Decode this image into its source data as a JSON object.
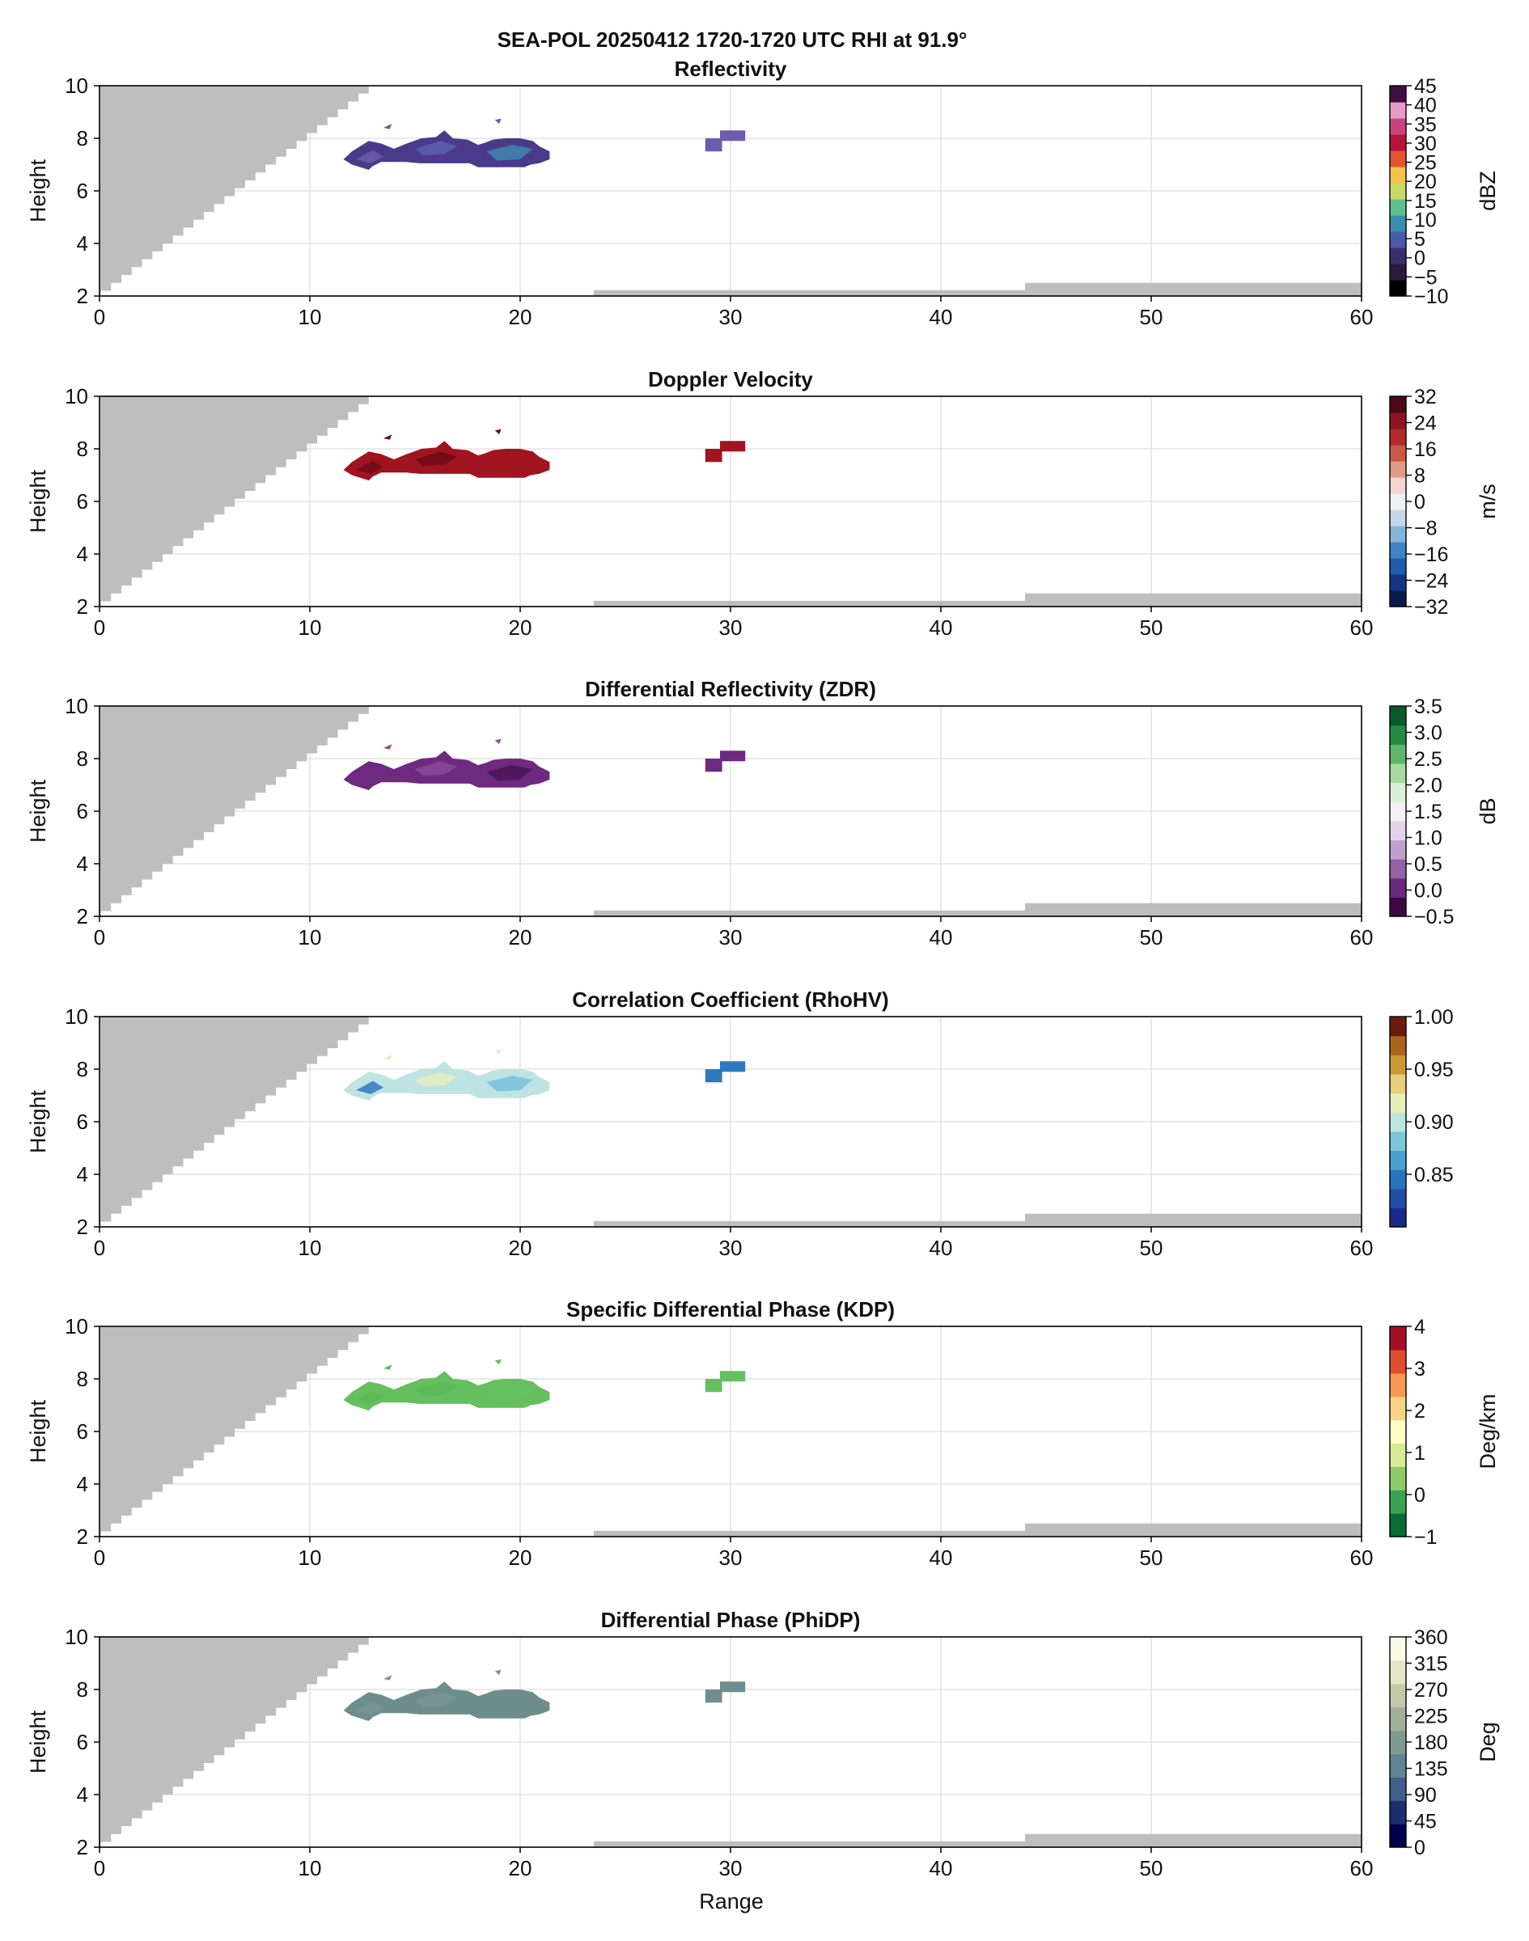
{
  "figure": {
    "suptitle": "SEA-POL 20250412 1720-1720 UTC RHI at 91.9°",
    "xlabel": "Range",
    "ylabel": "Height",
    "background_color": "#ffffff",
    "masked_color": "#bebebe"
  },
  "chart_data": [
    {
      "type": "heatmap",
      "title": "Reflectivity",
      "xlabel": "",
      "ylabel": "Height",
      "xlim": [
        0,
        60
      ],
      "ylim": [
        2,
        10
      ],
      "xticks": [
        "0",
        "10",
        "20",
        "30",
        "40",
        "50",
        "60"
      ],
      "yticks": [
        "2",
        "4",
        "6",
        "8",
        "10"
      ],
      "grid": true,
      "colorbar": {
        "label": "dBZ",
        "range": [
          -10,
          45
        ],
        "ticks": [
          -10,
          -5,
          0,
          5,
          10,
          15,
          20,
          25,
          30,
          35,
          40,
          45
        ],
        "tick_labels": [
          "−10",
          "−5",
          "0",
          "5",
          "10",
          "15",
          "20",
          "25",
          "30",
          "35",
          "40",
          "45"
        ],
        "colors": [
          "#000000",
          "#2a1b3d",
          "#3b2f6b",
          "#4a5aa8",
          "#3a8fb0",
          "#5ec08f",
          "#c8d96a",
          "#f2c24d",
          "#e3552e",
          "#b8123a",
          "#c9447c",
          "#e79ac6",
          "#3d0f42"
        ]
      },
      "echo_value": 2,
      "echo_colors": [
        "#4b3a8a",
        "#5a5fb3",
        "#3f86b0",
        "#6d5cae"
      ]
    },
    {
      "type": "heatmap",
      "title": "Doppler Velocity",
      "xlabel": "",
      "ylabel": "Height",
      "xlim": [
        0,
        60
      ],
      "ylim": [
        2,
        10
      ],
      "xticks": [
        "0",
        "10",
        "20",
        "30",
        "40",
        "50",
        "60"
      ],
      "yticks": [
        "2",
        "4",
        "6",
        "8",
        "10"
      ],
      "grid": true,
      "colorbar": {
        "label": "m/s",
        "range": [
          -32,
          32
        ],
        "ticks": [
          -32,
          -24,
          -16,
          -8,
          0,
          8,
          16,
          24,
          32
        ],
        "tick_labels": [
          "−32",
          "−24",
          "−16",
          "−8",
          "0",
          "8",
          "16",
          "24",
          "32"
        ],
        "colors": [
          "#0a1b4a",
          "#12367f",
          "#1b5bb0",
          "#3f84c4",
          "#86b4d6",
          "#c3d8e6",
          "#eef1f3",
          "#f2d6cf",
          "#df9a88",
          "#c95a47",
          "#b32a2c",
          "#8e1422",
          "#4c0a14"
        ]
      },
      "echo_value": 24,
      "echo_colors": [
        "#a0141f",
        "#6e0a16"
      ]
    },
    {
      "type": "heatmap",
      "title": "Differential Reflectivity (ZDR)",
      "xlabel": "",
      "ylabel": "Height",
      "xlim": [
        0,
        60
      ],
      "ylim": [
        2,
        10
      ],
      "xticks": [
        "0",
        "10",
        "20",
        "30",
        "40",
        "50",
        "60"
      ],
      "yticks": [
        "2",
        "4",
        "6",
        "8",
        "10"
      ],
      "grid": true,
      "colorbar": {
        "label": "dB",
        "range": [
          -0.5,
          3.5
        ],
        "ticks": [
          -0.5,
          0.0,
          0.5,
          1.0,
          1.5,
          2.0,
          2.5,
          3.0,
          3.5
        ],
        "tick_labels": [
          "−0.5",
          "0.0",
          "0.5",
          "1.0",
          "1.5",
          "2.0",
          "2.5",
          "3.0",
          "3.5"
        ],
        "colors": [
          "#3b0a45",
          "#6a2a7a",
          "#9363a6",
          "#bfa0cc",
          "#e2d3ea",
          "#f4f0f5",
          "#dcefd8",
          "#a8d9a0",
          "#5fb56a",
          "#228a43",
          "#0a5a2a"
        ]
      },
      "echo_value": 0.1,
      "echo_colors": [
        "#6e2a7e",
        "#8a4a98",
        "#4a1459"
      ]
    },
    {
      "type": "heatmap",
      "title": "Correlation Coefficient (RhoHV)",
      "xlabel": "",
      "ylabel": "Height",
      "xlim": [
        0,
        60
      ],
      "ylim": [
        2,
        10
      ],
      "xticks": [
        "0",
        "10",
        "20",
        "30",
        "40",
        "50",
        "60"
      ],
      "yticks": [
        "2",
        "4",
        "6",
        "8",
        "10"
      ],
      "grid": true,
      "colorbar": {
        "label": "",
        "range": [
          0.8,
          1.0
        ],
        "ticks": [
          0.85,
          0.9,
          0.95,
          1.0
        ],
        "tick_labels": [
          "0.85",
          "0.90",
          "0.95",
          "1.00"
        ],
        "colors": [
          "#1a2a8a",
          "#1f4fa8",
          "#2a74bd",
          "#49a0cf",
          "#7cc8d8",
          "#bfe5e0",
          "#e8eebc",
          "#e8cf7a",
          "#c99a35",
          "#a8661a",
          "#6e1a0e"
        ]
      },
      "echo_value": 0.93,
      "echo_colors": [
        "#bfe3e3",
        "#e6edc0",
        "#78bfd9",
        "#2e78be"
      ]
    },
    {
      "type": "heatmap",
      "title": "Specific Differential Phase (KDP)",
      "xlabel": "",
      "ylabel": "Height",
      "xlim": [
        0,
        60
      ],
      "ylim": [
        2,
        10
      ],
      "xticks": [
        "0",
        "10",
        "20",
        "30",
        "40",
        "50",
        "60"
      ],
      "yticks": [
        "2",
        "4",
        "6",
        "8",
        "10"
      ],
      "grid": true,
      "colorbar": {
        "label": "Deg/km",
        "range": [
          -1,
          4
        ],
        "ticks": [
          -1,
          0,
          1,
          2,
          3,
          4
        ],
        "tick_labels": [
          "−1",
          "0",
          "1",
          "2",
          "3",
          "4"
        ],
        "colors": [
          "#0b6b35",
          "#38a451",
          "#8fcc67",
          "#d6ec93",
          "#fdfdc4",
          "#fed283",
          "#f99853",
          "#e04d2d",
          "#a50f26"
        ]
      },
      "echo_value": 0,
      "echo_colors": [
        "#66bf5e",
        "#5cb958"
      ]
    },
    {
      "type": "heatmap",
      "title": "Differential Phase (PhiDP)",
      "xlabel": "Range",
      "ylabel": "Height",
      "xlim": [
        0,
        60
      ],
      "ylim": [
        2,
        10
      ],
      "xticks": [
        "0",
        "10",
        "20",
        "30",
        "40",
        "50",
        "60"
      ],
      "yticks": [
        "2",
        "4",
        "6",
        "8",
        "10"
      ],
      "grid": true,
      "colorbar": {
        "label": "Deg",
        "range": [
          0,
          360
        ],
        "ticks": [
          0,
          45,
          90,
          135,
          180,
          225,
          270,
          315,
          360
        ],
        "tick_labels": [
          "0",
          "45",
          "90",
          "135",
          "180",
          "225",
          "270",
          "315",
          "360"
        ],
        "colors": [
          "#00004d",
          "#1c2f70",
          "#3f5f88",
          "#5f8593",
          "#7f9a8f",
          "#9fb09a",
          "#c3c9a8",
          "#e4e5c6",
          "#fbfbe8"
        ]
      },
      "echo_value": 190,
      "echo_colors": [
        "#6e8e8c",
        "#7a9794"
      ]
    }
  ]
}
